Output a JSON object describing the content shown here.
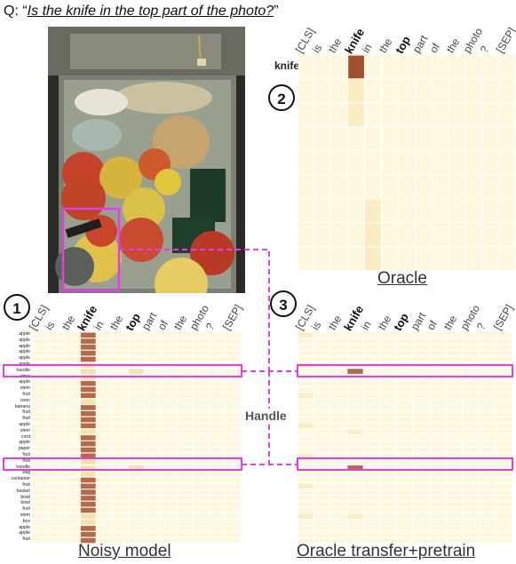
{
  "question": {
    "prefix": "Q: ",
    "open_quote": "“",
    "text": "Is the knife in the top part of the photo?",
    "close_quote": "”"
  },
  "tokens": [
    "[CLS]",
    "is",
    "the",
    "knife",
    "in",
    "the",
    "top",
    "part",
    "of",
    "the",
    "photo",
    "?",
    "[SEP]"
  ],
  "bold_tokens": [
    "knife",
    "top"
  ],
  "badges": [
    "1",
    "2",
    "3"
  ],
  "captions": {
    "oracle": "Oracle",
    "noisy": "Noisy model",
    "transfer": "Oracle transfer+pretrain"
  },
  "handle_label": "Handle",
  "oracle_row_label": "knife",
  "object_labels": [
    "apple",
    "apple",
    "apple",
    "apple",
    "apple",
    "apple",
    "handle",
    "other",
    "apple",
    "stem",
    "fruit",
    "oven",
    "banana",
    "fruit",
    "fruit",
    "apple",
    "stem",
    "cord",
    "apple",
    "paper",
    "fruit",
    "fruit",
    "handle",
    "bag",
    "container",
    "fruit",
    "basket",
    "bowl",
    "bowl",
    "fruit",
    "stem",
    "box",
    "apple",
    "apple",
    "fruit"
  ],
  "colors": {
    "highlight": "#e63ce6",
    "cell_low": "#fdf8de",
    "cell_mid": "#f7e3a9",
    "cell_high": "#b66a43",
    "cell_peak": "#a44f2c"
  }
}
